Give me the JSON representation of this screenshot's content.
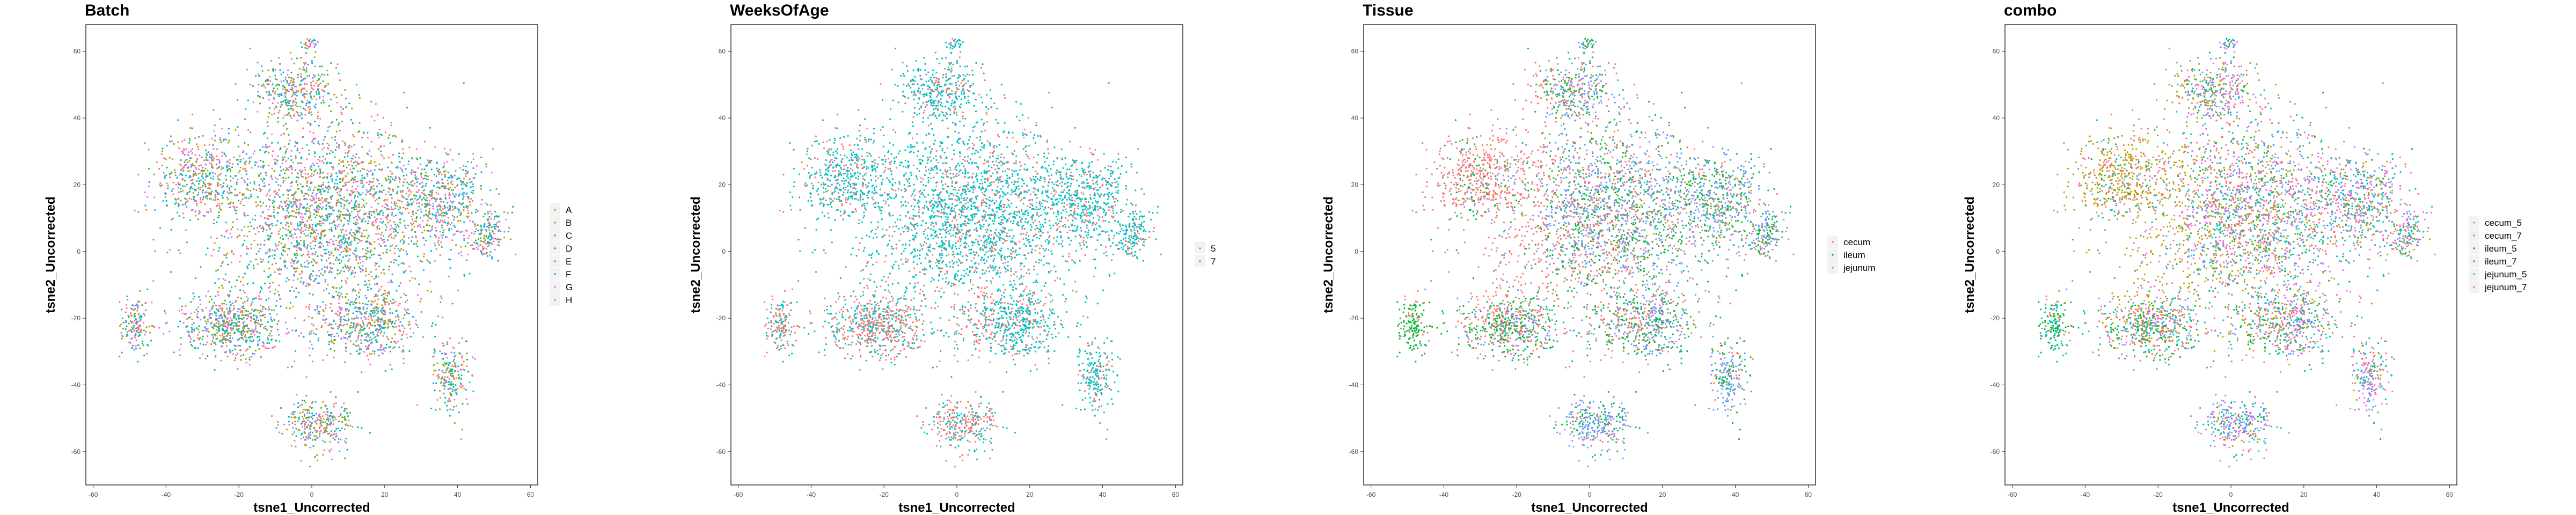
{
  "chart_data": [
    {
      "type": "scatter",
      "title": "Batch",
      "xlabel": "tsne1_Uncorrected",
      "ylabel": "tsne2_Uncorrected",
      "xlim": [
        -62,
        62
      ],
      "ylim": [
        -70,
        68
      ],
      "xticks": [
        -60,
        -40,
        -20,
        0,
        20,
        40,
        60
      ],
      "yticks": [
        -60,
        -40,
        -20,
        0,
        20,
        40,
        60
      ],
      "grid": false,
      "legend_position": "right",
      "series": [
        {
          "name": "A",
          "color": "#F8766D"
        },
        {
          "name": "B",
          "color": "#CD9600"
        },
        {
          "name": "C",
          "color": "#7CAE00"
        },
        {
          "name": "D",
          "color": "#00BE67"
        },
        {
          "name": "E",
          "color": "#00BFC4"
        },
        {
          "name": "F",
          "color": "#00A9FF"
        },
        {
          "name": "G",
          "color": "#C77CFF"
        },
        {
          "name": "H",
          "color": "#FF61CC"
        }
      ]
    },
    {
      "type": "scatter",
      "title": "WeeksOfAge",
      "xlabel": "tsne1_Uncorrected",
      "ylabel": "tsne2_Uncorrected",
      "xlim": [
        -62,
        62
      ],
      "ylim": [
        -70,
        68
      ],
      "xticks": [
        -60,
        -40,
        -20,
        0,
        20,
        40,
        60
      ],
      "yticks": [
        -60,
        -40,
        -20,
        0,
        20,
        40,
        60
      ],
      "grid": false,
      "legend_position": "right",
      "series": [
        {
          "name": "5",
          "color": "#F8766D"
        },
        {
          "name": "7",
          "color": "#00BFC4"
        }
      ]
    },
    {
      "type": "scatter",
      "title": "Tissue",
      "xlabel": "tsne1_Uncorrected",
      "ylabel": "tsne2_Uncorrected",
      "xlim": [
        -62,
        62
      ],
      "ylim": [
        -70,
        68
      ],
      "xticks": [
        -60,
        -40,
        -20,
        0,
        20,
        40,
        60
      ],
      "yticks": [
        -60,
        -40,
        -20,
        0,
        20,
        40,
        60
      ],
      "grid": false,
      "legend_position": "right",
      "series": [
        {
          "name": "cecum",
          "color": "#F8766D"
        },
        {
          "name": "ileum",
          "color": "#00BA38"
        },
        {
          "name": "jejunum",
          "color": "#619CFF"
        }
      ]
    },
    {
      "type": "scatter",
      "title": "combo",
      "xlabel": "tsne1_Uncorrected",
      "ylabel": "tsne2_Uncorrected",
      "xlim": [
        -62,
        62
      ],
      "ylim": [
        -70,
        68
      ],
      "xticks": [
        -60,
        -40,
        -20,
        0,
        20,
        40,
        60
      ],
      "yticks": [
        -60,
        -40,
        -20,
        0,
        20,
        40,
        60
      ],
      "grid": false,
      "legend_position": "right",
      "series": [
        {
          "name": "cecum_5",
          "color": "#F8766D"
        },
        {
          "name": "cecum_7",
          "color": "#B79F00"
        },
        {
          "name": "ileum_5",
          "color": "#00BA38"
        },
        {
          "name": "ileum_7",
          "color": "#00BFC4"
        },
        {
          "name": "jejunum_5",
          "color": "#619CFF"
        },
        {
          "name": "jejunum_7",
          "color": "#F564E3"
        }
      ]
    }
  ]
}
